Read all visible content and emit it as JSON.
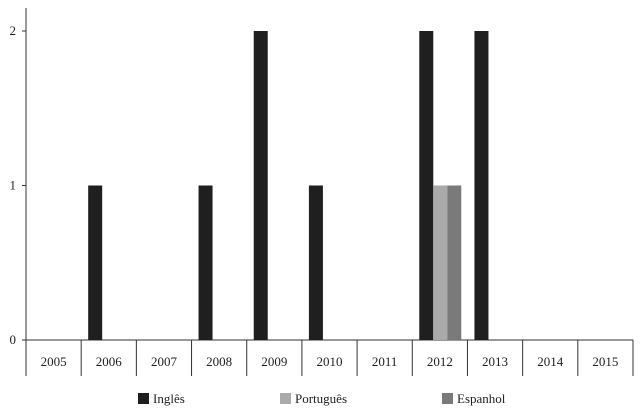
{
  "chart_data": {
    "type": "bar",
    "categories": [
      "2005",
      "2006",
      "2007",
      "2008",
      "2009",
      "2010",
      "2011",
      "2012",
      "2013",
      "2014",
      "2015"
    ],
    "series": [
      {
        "name": "Inglês",
        "color": "#1f1f1f",
        "values": [
          0,
          1,
          0,
          1,
          2,
          1,
          0,
          2,
          2,
          0,
          0
        ]
      },
      {
        "name": "Português",
        "color": "#aaaaaa",
        "values": [
          0,
          0,
          0,
          0,
          0,
          0,
          0,
          1,
          0,
          0,
          0
        ]
      },
      {
        "name": "Espanhol",
        "color": "#7a7a7a",
        "values": [
          0,
          0,
          0,
          0,
          0,
          0,
          0,
          1,
          0,
          0,
          0
        ]
      }
    ],
    "yticks": [
      "0",
      "1",
      "2"
    ],
    "ylim": [
      0,
      2
    ],
    "title": "",
    "xlabel": "",
    "ylabel": "",
    "legend_position": "bottom",
    "grid": false
  }
}
